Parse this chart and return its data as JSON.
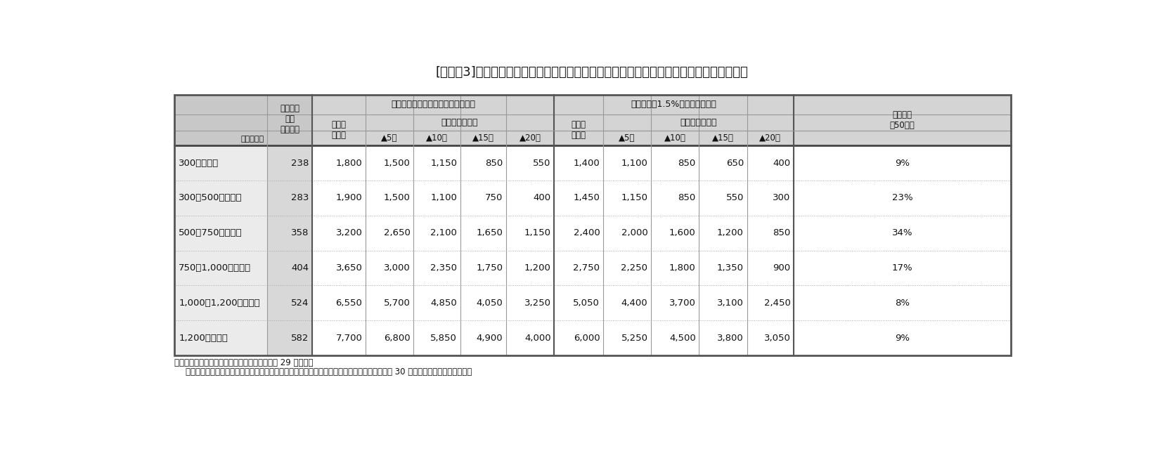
{
  "title": "[図表－3]　退職後消費支出（年額）と老後の生活のために用意すべき金額（年収階級別）",
  "footnote1": "（資料）国税庁　民間給与実態統計調査（平成 29 年分）、",
  "footnote2": "　　　　金融広報中央委員会　家計の金融行動に関する世論調査［二人以上世帯調査］（平成 30 年調査結果）を基に筆者作成",
  "header_kijun": "基準消費\n支出\n（年額）",
  "header_rogoTitle": "老後の生活のために用意すべき金額",
  "header_doLeft": "同左　年獴1.5%で運用した場合",
  "header_genzai1": "現在と\n同水準",
  "header_seikatu1": "生活水準が低下",
  "header_genzai2": "現在と\n同水準",
  "header_seikatu2": "生活水準が低下",
  "header_setai": "世帯割合\n（50代）",
  "header_tani": "単位：万円",
  "pct_labels": [
    "▲5％",
    "▲10％",
    "▲15％",
    "▲20％"
  ],
  "row_data": [
    {
      "label": "300万円未満",
      "kijun": "238",
      "col2": "1,800",
      "col3": "1,500",
      "col4": "1,150",
      "col5": "850",
      "col6": "550",
      "col7": "1,400",
      "col8": "1,100",
      "col9": "850",
      "col10": "650",
      "col11": "400",
      "col12": "9%"
    },
    {
      "label": "300～500万円未満",
      "kijun": "283",
      "col2": "1,900",
      "col3": "1,500",
      "col4": "1,100",
      "col5": "750",
      "col6": "400",
      "col7": "1,450",
      "col8": "1,150",
      "col9": "850",
      "col10": "550",
      "col11": "300",
      "col12": "23%"
    },
    {
      "label": "500～750万円未満",
      "kijun": "358",
      "col2": "3,200",
      "col3": "2,650",
      "col4": "2,100",
      "col5": "1,650",
      "col6": "1,150",
      "col7": "2,400",
      "col8": "2,000",
      "col9": "1,600",
      "col10": "1,200",
      "col11": "850",
      "col12": "34%"
    },
    {
      "label": "750～1,000万円未満",
      "kijun": "404",
      "col2": "3,650",
      "col3": "3,000",
      "col4": "2,350",
      "col5": "1,750",
      "col6": "1,200",
      "col7": "2,750",
      "col8": "2,250",
      "col9": "1,800",
      "col10": "1,350",
      "col11": "900",
      "col12": "17%"
    },
    {
      "label": "1,000～1,200万円未満",
      "kijun": "524",
      "col2": "6,550",
      "col3": "5,700",
      "col4": "4,850",
      "col5": "4,050",
      "col6": "3,250",
      "col7": "5,050",
      "col8": "4,400",
      "col9": "3,700",
      "col10": "3,100",
      "col11": "2,450",
      "col12": "8%"
    },
    {
      "label": "1,200万円以上",
      "kijun": "582",
      "col2": "7,700",
      "col3": "6,800",
      "col4": "5,850",
      "col5": "4,900",
      "col6": "4,000",
      "col7": "6,000",
      "col8": "5,250",
      "col9": "4,500",
      "col10": "3,800",
      "col11": "3,050",
      "col12": "9%"
    }
  ]
}
